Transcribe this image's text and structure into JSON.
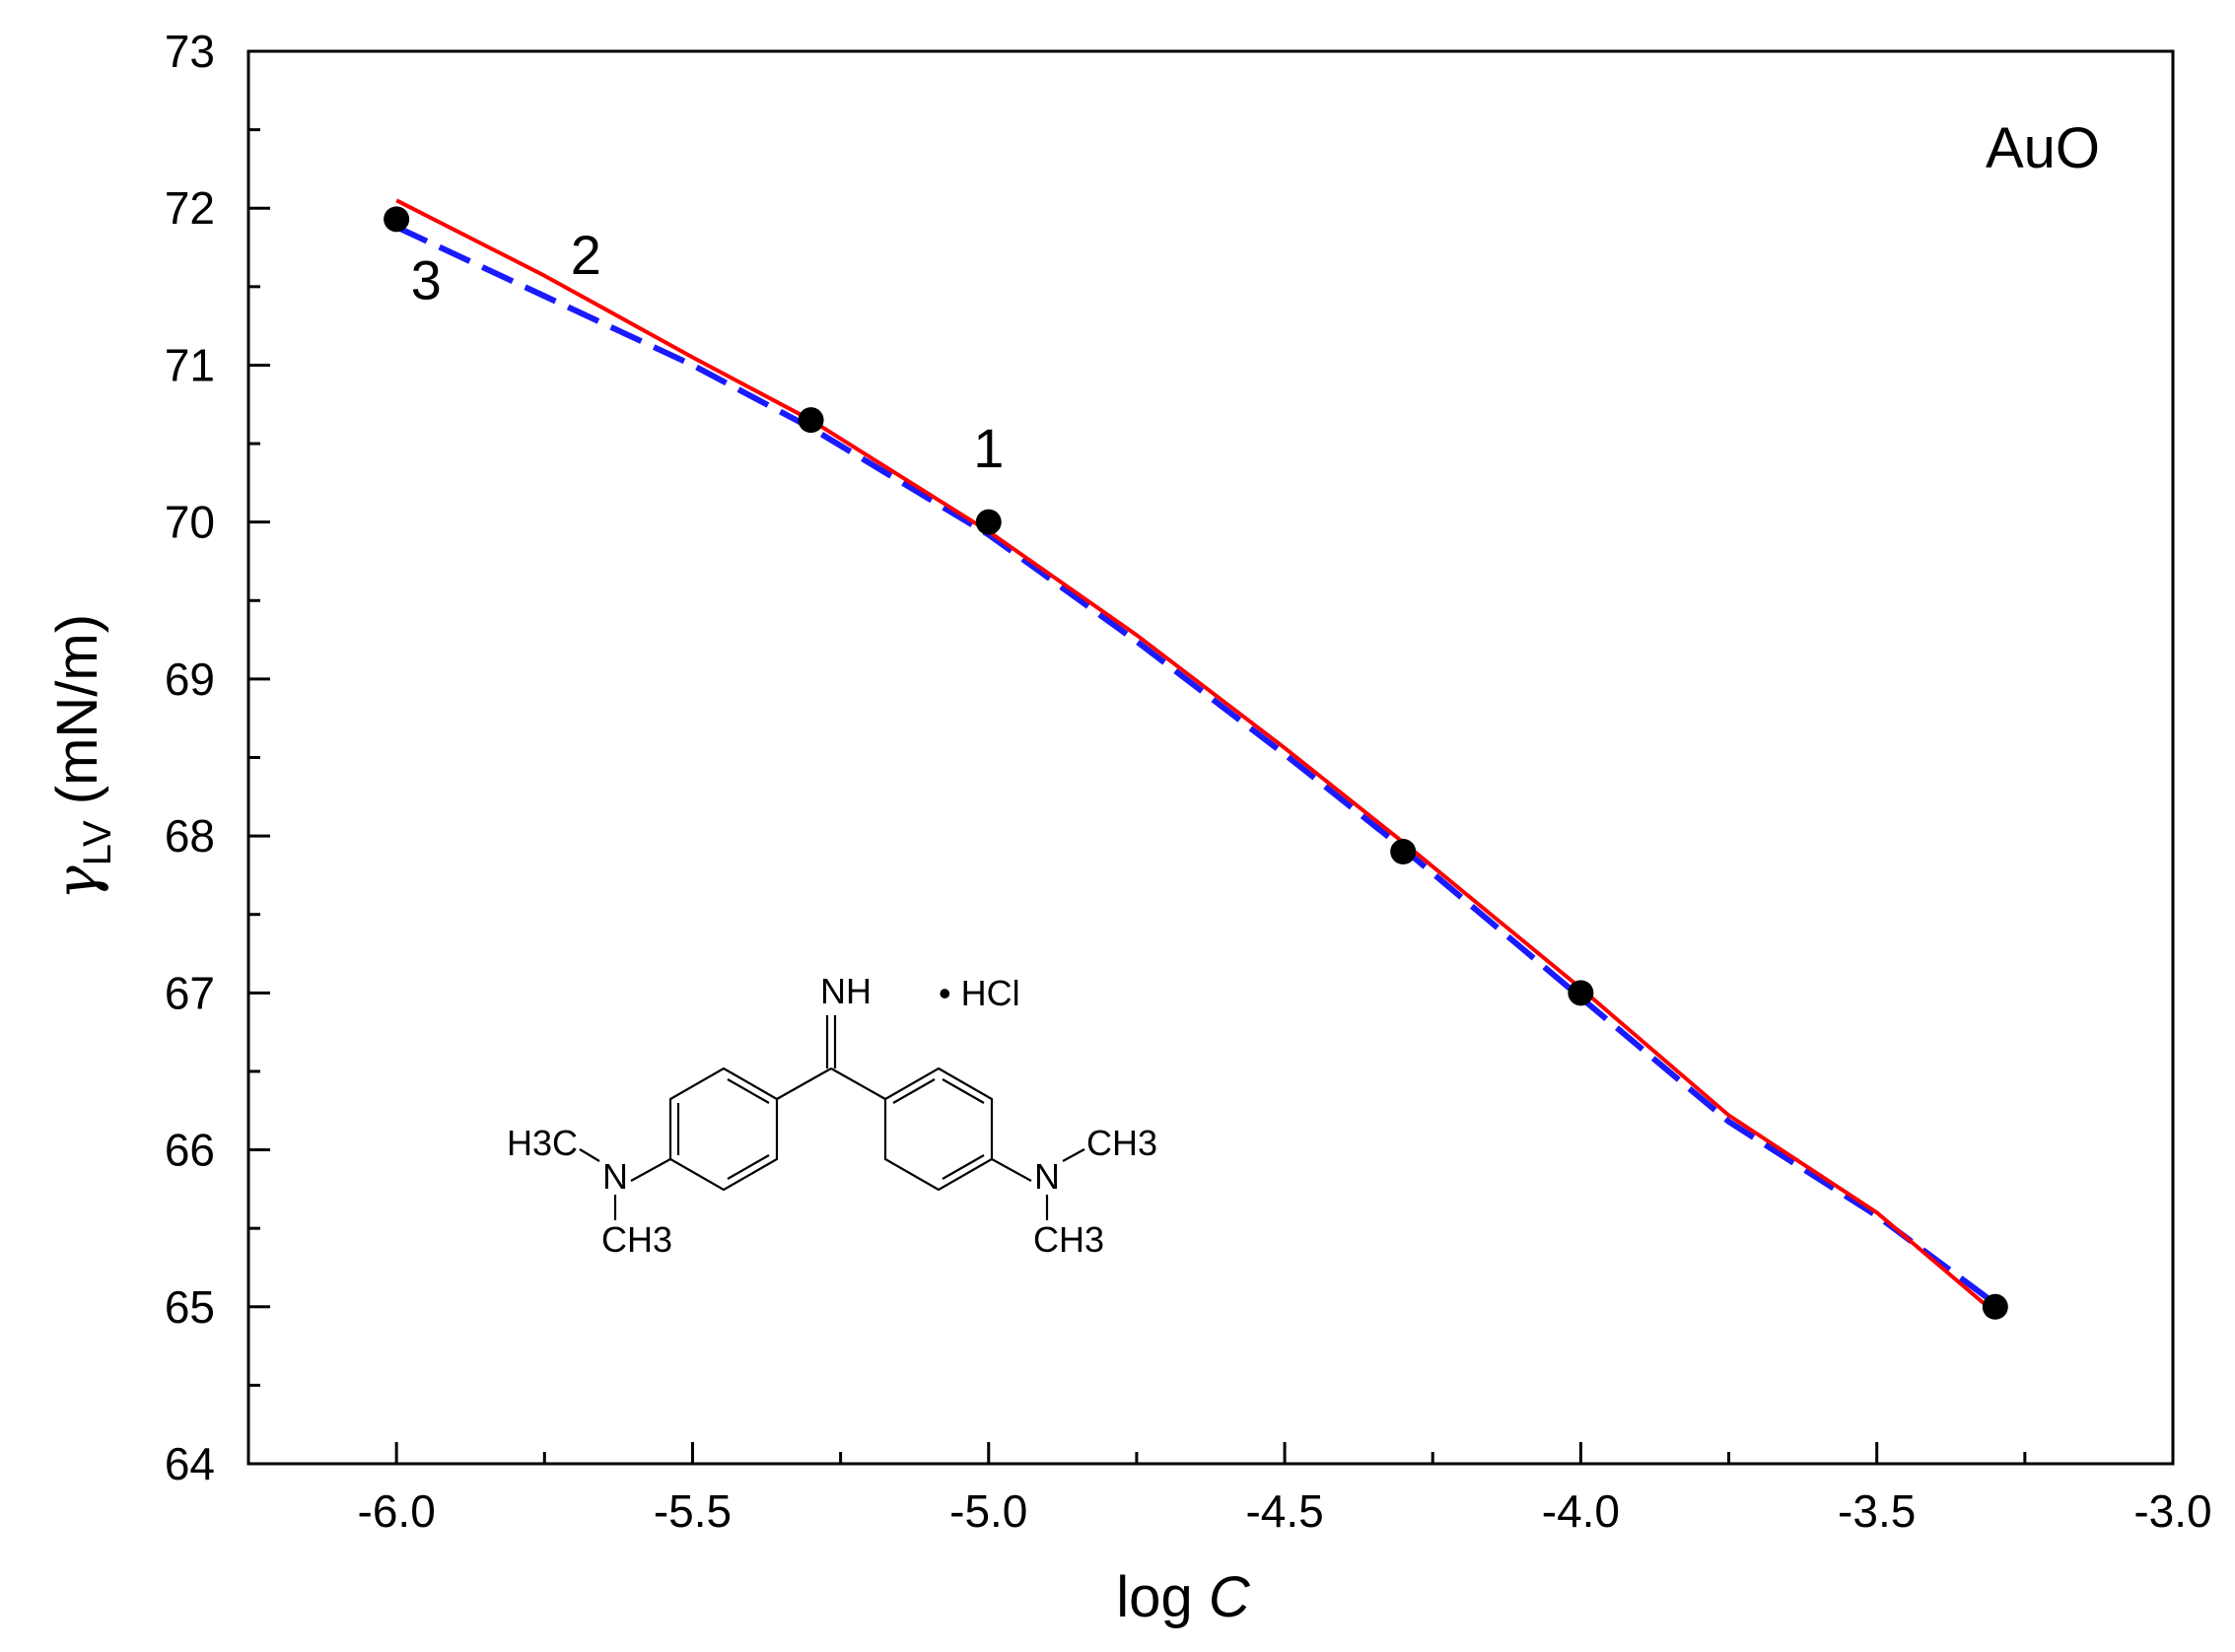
{
  "chart_data": {
    "type": "scatter",
    "xlabel": {
      "prefix": "log ",
      "italic": "C"
    },
    "ylabel": {
      "symbol": "γ",
      "subscript": "LV",
      "unit": " (mN/m)"
    },
    "xlim": [
      -6.25,
      -3.0
    ],
    "ylim": [
      64,
      73
    ],
    "x_ticks": [
      -6.0,
      -5.5,
      -5.0,
      -4.5,
      -4.0,
      -3.5,
      -3.0
    ],
    "x_tick_labels": [
      "-6.0",
      "-5.5",
      "-5.0",
      "-4.5",
      "-4.0",
      "-3.5",
      "-3.0"
    ],
    "y_ticks": [
      64,
      65,
      66,
      67,
      68,
      69,
      70,
      71,
      72,
      73
    ],
    "y_tick_labels": [
      "64",
      "65",
      "66",
      "67",
      "68",
      "69",
      "70",
      "71",
      "72",
      "73"
    ],
    "grid": false,
    "panel_label": "AuO",
    "points": {
      "x": [
        -6.0,
        -5.3,
        -5.0,
        -4.3,
        -4.0,
        -3.3
      ],
      "y": [
        71.93,
        70.65,
        70.0,
        67.9,
        67.0,
        65.0
      ],
      "color": "#000000"
    },
    "curves": [
      {
        "style": "solid",
        "color": "#ff0000",
        "x": [
          -6.0,
          -5.75,
          -5.5,
          -5.3,
          -5.0,
          -4.75,
          -4.5,
          -4.3,
          -4.0,
          -3.75,
          -3.5,
          -3.3
        ],
        "y": [
          72.05,
          71.57,
          71.05,
          70.65,
          69.94,
          69.28,
          68.56,
          67.96,
          67.03,
          66.22,
          65.6,
          64.96
        ]
      },
      {
        "style": "dashed",
        "color": "#1a1aff",
        "x": [
          -6.0,
          -5.75,
          -5.5,
          -5.3,
          -5.0,
          -4.75,
          -4.5,
          -4.3,
          -4.0,
          -3.75,
          -3.5,
          -3.3
        ],
        "y": [
          71.88,
          71.44,
          71.0,
          70.6,
          69.92,
          69.24,
          68.52,
          67.92,
          66.97,
          66.18,
          65.58,
          65.02
        ]
      }
    ],
    "annotations": [
      {
        "text": "1",
        "x": -5.0,
        "y": 70.35
      },
      {
        "text": "2",
        "x": -5.68,
        "y": 71.58
      },
      {
        "text": "3",
        "x": -5.95,
        "y": 71.42
      }
    ],
    "inset_structure": {
      "labels": {
        "imine": "NH",
        "salt": "• HCl",
        "left_methyl_top": "H3C",
        "left_nitrogen": "N",
        "left_methyl_bottom": "CH3",
        "right_methyl_top": "CH3",
        "right_nitrogen": "N",
        "right_methyl_bottom": "CH3"
      }
    }
  }
}
